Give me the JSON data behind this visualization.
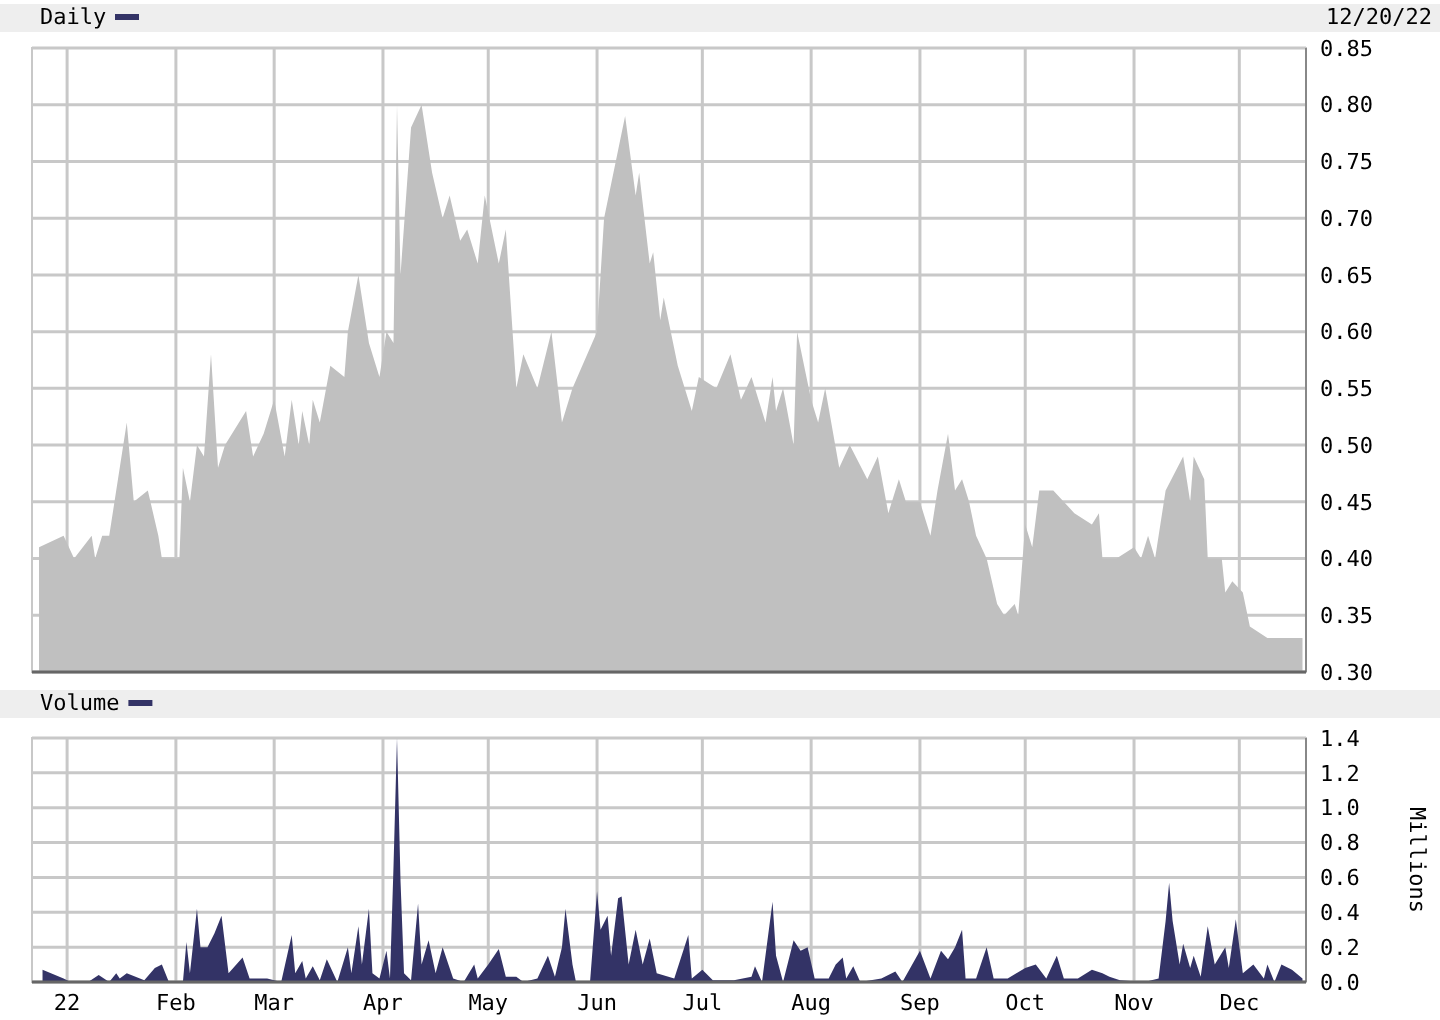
{
  "chart_data": [
    {
      "type": "area",
      "annotations": [
        "12/20/22"
      ],
      "legend": "top left",
      "grid": true,
      "tick_labels": "y",
      "xlim": [
        "2021-12-22",
        "2022-12-20"
      ],
      "xticks": [
        {
          "value": "2022-01-01",
          "label": null
        },
        {
          "value": "2022-02-01",
          "label": null
        },
        {
          "value": "2022-03-01",
          "label": null
        },
        {
          "value": "2022-04-01",
          "label": null
        },
        {
          "value": "2022-05-01",
          "label": null
        },
        {
          "value": "2022-06-01",
          "label": null
        },
        {
          "value": "2022-07-01",
          "label": null
        },
        {
          "value": "2022-08-01",
          "label": null
        },
        {
          "value": "2022-09-01",
          "label": null
        },
        {
          "value": "2022-10-01",
          "label": null
        },
        {
          "value": "2022-11-01",
          "label": null
        },
        {
          "value": "2022-12-01",
          "label": null
        }
      ],
      "ylim": [
        0.3,
        0.85
      ],
      "yticks": [
        {
          "value": 0.3,
          "label": "0.30"
        },
        {
          "value": 0.35,
          "label": "0.35"
        },
        {
          "value": 0.4,
          "label": "0.40"
        },
        {
          "value": 0.45,
          "label": "0.45"
        },
        {
          "value": 0.5,
          "label": "0.50"
        },
        {
          "value": 0.55,
          "label": "0.55"
        },
        {
          "value": 0.6,
          "label": "0.60"
        },
        {
          "value": 0.65,
          "label": "0.65"
        },
        {
          "value": 0.7,
          "label": "0.70"
        },
        {
          "value": 0.75,
          "label": "0.75"
        },
        {
          "value": 0.8,
          "label": "0.80"
        },
        {
          "value": 0.85,
          "label": "0.85"
        }
      ],
      "series": [
        {
          "name": "Daily",
          "color": "#c0c0c0",
          "x": [
            "2021-12-24",
            "2021-12-31",
            "2022-01-03",
            "2022-01-08",
            "2022-01-09",
            "2022-01-11",
            "2022-01-13",
            "2022-01-18",
            "2022-01-20",
            "2022-01-24",
            "2022-01-27",
            "2022-01-28",
            "2022-02-02",
            "2022-02-03",
            "2022-02-05",
            "2022-02-07",
            "2022-02-09",
            "2022-02-11",
            "2022-02-13",
            "2022-02-15",
            "2022-02-21",
            "2022-02-23",
            "2022-02-26",
            "2022-03-01",
            "2022-03-04",
            "2022-03-06",
            "2022-03-08",
            "2022-03-09",
            "2022-03-11",
            "2022-03-12",
            "2022-03-14",
            "2022-03-17",
            "2022-03-21",
            "2022-03-22",
            "2022-03-25",
            "2022-03-28",
            "2022-03-31",
            "2022-04-02",
            "2022-04-04",
            "2022-04-05",
            "2022-04-06",
            "2022-04-09",
            "2022-04-12",
            "2022-04-15",
            "2022-04-18",
            "2022-04-20",
            "2022-04-23",
            "2022-04-25",
            "2022-04-28",
            "2022-04-30",
            "2022-05-04",
            "2022-05-06",
            "2022-05-09",
            "2022-05-11",
            "2022-05-15",
            "2022-05-19",
            "2022-05-22",
            "2022-05-25",
            "2022-06-01",
            "2022-06-03",
            "2022-06-09",
            "2022-06-12",
            "2022-06-13",
            "2022-06-16",
            "2022-06-17",
            "2022-06-19",
            "2022-06-20",
            "2022-06-24",
            "2022-06-28",
            "2022-06-30",
            "2022-07-05",
            "2022-07-09",
            "2022-07-12",
            "2022-07-15",
            "2022-07-19",
            "2022-07-21",
            "2022-07-22",
            "2022-07-24",
            "2022-07-27",
            "2022-07-28",
            "2022-08-01",
            "2022-08-03",
            "2022-08-05",
            "2022-08-09",
            "2022-08-12",
            "2022-08-17",
            "2022-08-20",
            "2022-08-23",
            "2022-08-26",
            "2022-08-28",
            "2022-09-01",
            "2022-09-04",
            "2022-09-06",
            "2022-09-09",
            "2022-09-11",
            "2022-09-13",
            "2022-09-15",
            "2022-09-17",
            "2022-09-20",
            "2022-09-23",
            "2022-09-25",
            "2022-09-28",
            "2022-09-29",
            "2022-10-01",
            "2022-10-03",
            "2022-10-05",
            "2022-10-09",
            "2022-10-15",
            "2022-10-20",
            "2022-10-22",
            "2022-10-23",
            "2022-10-27",
            "2022-11-01",
            "2022-11-03",
            "2022-11-05",
            "2022-11-07",
            "2022-11-10",
            "2022-11-15",
            "2022-11-17",
            "2022-11-18",
            "2022-11-21",
            "2022-11-22",
            "2022-11-26",
            "2022-11-27",
            "2022-11-29",
            "2022-12-02",
            "2022-12-04",
            "2022-12-09",
            "2022-12-11",
            "2022-12-19"
          ],
          "values": [
            0.41,
            0.42,
            0.4,
            0.42,
            0.4,
            0.42,
            0.42,
            0.52,
            0.45,
            0.46,
            0.42,
            0.4,
            0.4,
            0.48,
            0.45,
            0.5,
            0.49,
            0.58,
            0.48,
            0.5,
            0.53,
            0.49,
            0.51,
            0.54,
            0.49,
            0.54,
            0.5,
            0.53,
            0.5,
            0.54,
            0.52,
            0.57,
            0.56,
            0.6,
            0.65,
            0.59,
            0.56,
            0.6,
            0.59,
            0.8,
            0.65,
            0.78,
            0.8,
            0.74,
            0.7,
            0.72,
            0.68,
            0.69,
            0.66,
            0.72,
            0.66,
            0.69,
            0.55,
            0.58,
            0.55,
            0.6,
            0.52,
            0.55,
            0.6,
            0.7,
            0.79,
            0.72,
            0.74,
            0.66,
            0.67,
            0.61,
            0.63,
            0.57,
            0.53,
            0.56,
            0.55,
            0.58,
            0.54,
            0.56,
            0.52,
            0.56,
            0.53,
            0.55,
            0.5,
            0.6,
            0.54,
            0.52,
            0.55,
            0.48,
            0.5,
            0.47,
            0.49,
            0.44,
            0.47,
            0.45,
            0.45,
            0.42,
            0.46,
            0.51,
            0.46,
            0.47,
            0.45,
            0.42,
            0.4,
            0.36,
            0.35,
            0.36,
            0.35,
            0.43,
            0.41,
            0.46,
            0.46,
            0.44,
            0.43,
            0.44,
            0.4,
            0.4,
            0.41,
            0.4,
            0.42,
            0.4,
            0.46,
            0.49,
            0.45,
            0.49,
            0.47,
            0.4,
            0.4,
            0.37,
            0.38,
            0.37,
            0.34,
            0.33,
            0.33,
            0.33
          ]
        }
      ]
    },
    {
      "type": "area",
      "legend": "top left",
      "grid": true,
      "ylabel": "Millions",
      "xlim": [
        "2021-12-22",
        "2022-12-20"
      ],
      "xticks": [
        {
          "value": "2022-01-01",
          "label": "22"
        },
        {
          "value": "2022-02-01",
          "label": "Feb"
        },
        {
          "value": "2022-03-01",
          "label": "Mar"
        },
        {
          "value": "2022-04-01",
          "label": "Apr"
        },
        {
          "value": "2022-05-01",
          "label": "May"
        },
        {
          "value": "2022-06-01",
          "label": "Jun"
        },
        {
          "value": "2022-07-01",
          "label": "Jul"
        },
        {
          "value": "2022-08-01",
          "label": "Aug"
        },
        {
          "value": "2022-09-01",
          "label": "Sep"
        },
        {
          "value": "2022-10-01",
          "label": "Oct"
        },
        {
          "value": "2022-11-01",
          "label": "Nov"
        },
        {
          "value": "2022-12-01",
          "label": "Dec"
        }
      ],
      "ylim": [
        0,
        1.4
      ],
      "yticks": [
        {
          "value": 0,
          "label": "0.0"
        },
        {
          "value": 0.2,
          "label": "0.2"
        },
        {
          "value": 0.4,
          "label": "0.4"
        },
        {
          "value": 0.6,
          "label": "0.6"
        },
        {
          "value": 0.8,
          "label": "0.8"
        },
        {
          "value": 1,
          "label": "1.0"
        },
        {
          "value": 1.2,
          "label": "1.2"
        },
        {
          "value": 1.4,
          "label": "1.4"
        }
      ],
      "series": [
        {
          "name": "Volume",
          "color": "#333366",
          "x": [
            "2021-12-25",
            "2021-12-31",
            "2022-01-02",
            "2022-01-07",
            "2022-01-10",
            "2022-01-13",
            "2022-01-15",
            "2022-01-16",
            "2022-01-18",
            "2022-01-23",
            "2022-01-26",
            "2022-01-28",
            "2022-01-30",
            "2022-02-03",
            "2022-02-04",
            "2022-02-05",
            "2022-02-07",
            "2022-02-08",
            "2022-02-10",
            "2022-02-12",
            "2022-02-14",
            "2022-02-16",
            "2022-02-20",
            "2022-02-22",
            "2022-02-27",
            "2022-03-03",
            "2022-03-06",
            "2022-03-07",
            "2022-03-09",
            "2022-03-10",
            "2022-03-12",
            "2022-03-14",
            "2022-03-16",
            "2022-03-19",
            "2022-03-22",
            "2022-03-23",
            "2022-03-25",
            "2022-03-26",
            "2022-03-28",
            "2022-03-29",
            "2022-03-31",
            "2022-04-02",
            "2022-04-03",
            "2022-04-04",
            "2022-04-05",
            "2022-04-06",
            "2022-04-07",
            "2022-04-09",
            "2022-04-11",
            "2022-04-12",
            "2022-04-14",
            "2022-04-16",
            "2022-04-18",
            "2022-04-21",
            "2022-04-24",
            "2022-04-27",
            "2022-04-28",
            "2022-05-01",
            "2022-05-04",
            "2022-05-06",
            "2022-05-09",
            "2022-05-11",
            "2022-05-15",
            "2022-05-18",
            "2022-05-20",
            "2022-05-22",
            "2022-05-23",
            "2022-05-25",
            "2022-05-26",
            "2022-05-30",
            "2022-06-01",
            "2022-06-02",
            "2022-06-04",
            "2022-06-05",
            "2022-06-07",
            "2022-06-08",
            "2022-06-10",
            "2022-06-12",
            "2022-06-14",
            "2022-06-16",
            "2022-06-18",
            "2022-06-23",
            "2022-06-27",
            "2022-06-28",
            "2022-07-01",
            "2022-07-04",
            "2022-07-10",
            "2022-07-15",
            "2022-07-16",
            "2022-07-18",
            "2022-07-21",
            "2022-07-22",
            "2022-07-24",
            "2022-07-27",
            "2022-07-29",
            "2022-07-31",
            "2022-08-02",
            "2022-08-06",
            "2022-08-08",
            "2022-08-10",
            "2022-08-11",
            "2022-08-13",
            "2022-08-15",
            "2022-08-21",
            "2022-08-25",
            "2022-08-27",
            "2022-09-01",
            "2022-09-04",
            "2022-09-07",
            "2022-09-09",
            "2022-09-11",
            "2022-09-13",
            "2022-09-14",
            "2022-09-17",
            "2022-09-20",
            "2022-09-22",
            "2022-09-26",
            "2022-10-01",
            "2022-10-04",
            "2022-10-07",
            "2022-10-10",
            "2022-10-12",
            "2022-10-16",
            "2022-10-20",
            "2022-10-23",
            "2022-10-25",
            "2022-10-28",
            "2022-11-04",
            "2022-11-08",
            "2022-11-10",
            "2022-11-11",
            "2022-11-12",
            "2022-11-14",
            "2022-11-15",
            "2022-11-17",
            "2022-11-18",
            "2022-11-20",
            "2022-11-22",
            "2022-11-24",
            "2022-11-27",
            "2022-11-28",
            "2022-11-30",
            "2022-12-02",
            "2022-12-05",
            "2022-12-08",
            "2022-12-09",
            "2022-12-11",
            "2022-12-13",
            "2022-12-16",
            "2022-12-19"
          ],
          "values": [
            0.07,
            0.02,
            0.0,
            0.0,
            0.04,
            0.0,
            0.05,
            0.02,
            0.05,
            0.01,
            0.08,
            0.1,
            0.0,
            0.0,
            0.23,
            0.05,
            0.42,
            0.2,
            0.2,
            0.28,
            0.38,
            0.05,
            0.14,
            0.02,
            0.02,
            0.0,
            0.27,
            0.05,
            0.12,
            0.02,
            0.09,
            0.01,
            0.13,
            0.0,
            0.2,
            0.05,
            0.32,
            0.1,
            0.42,
            0.05,
            0.02,
            0.18,
            0.02,
            0.66,
            1.4,
            0.58,
            0.05,
            0.01,
            0.45,
            0.1,
            0.24,
            0.05,
            0.2,
            0.02,
            0.0,
            0.1,
            0.02,
            0.1,
            0.19,
            0.03,
            0.03,
            0.0,
            0.02,
            0.15,
            0.03,
            0.2,
            0.42,
            0.1,
            0.0,
            0.0,
            0.52,
            0.3,
            0.38,
            0.15,
            0.48,
            0.49,
            0.1,
            0.3,
            0.1,
            0.25,
            0.05,
            0.02,
            0.27,
            0.02,
            0.07,
            0.01,
            0.01,
            0.03,
            0.09,
            0.0,
            0.46,
            0.15,
            0.0,
            0.24,
            0.18,
            0.2,
            0.02,
            0.02,
            0.1,
            0.14,
            0.02,
            0.09,
            0.0,
            0.02,
            0.06,
            0.0,
            0.18,
            0.02,
            0.18,
            0.13,
            0.2,
            0.3,
            0.02,
            0.02,
            0.2,
            0.02,
            0.02,
            0.08,
            0.1,
            0.02,
            0.15,
            0.02,
            0.02,
            0.07,
            0.05,
            0.03,
            0.01,
            0.0,
            0.02,
            0.35,
            0.57,
            0.35,
            0.1,
            0.22,
            0.08,
            0.15,
            0.03,
            0.32,
            0.1,
            0.2,
            0.08,
            0.36,
            0.05,
            0.1,
            0.02,
            0.1,
            0.0,
            0.1,
            0.07,
            0.02
          ]
        }
      ]
    }
  ]
}
